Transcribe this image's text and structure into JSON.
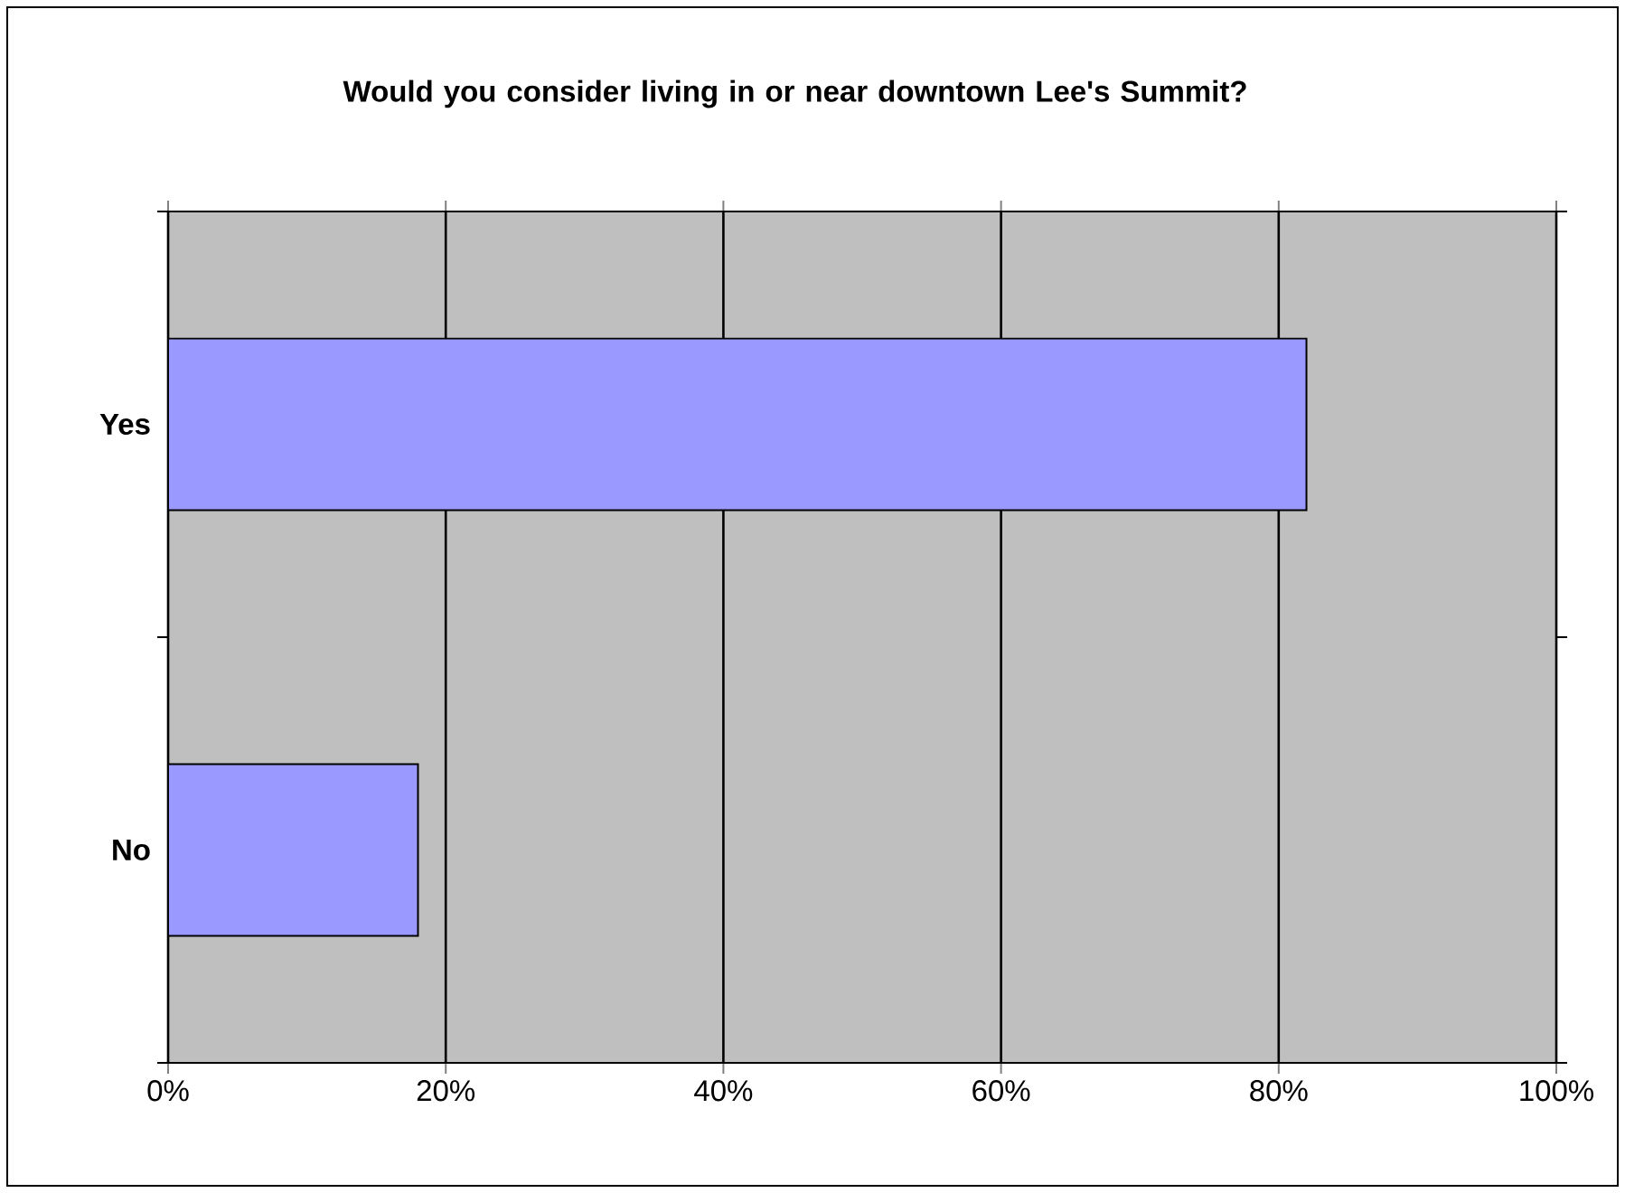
{
  "chart_data": {
    "type": "bar",
    "orientation": "horizontal",
    "title": "Would you consider living in or near downtown Lee's Summit?",
    "categories": [
      "Yes",
      "No"
    ],
    "values": [
      82,
      18
    ],
    "color": "#9999ff",
    "xlim": [
      0,
      100
    ],
    "xticks": [
      {
        "value": 0,
        "label": "0%"
      },
      {
        "value": 20,
        "label": "20%"
      },
      {
        "value": 40,
        "label": "40%"
      },
      {
        "value": 60,
        "label": "60%"
      },
      {
        "value": 80,
        "label": "80%"
      },
      {
        "value": 100,
        "label": "100%"
      }
    ],
    "grid": "x"
  }
}
